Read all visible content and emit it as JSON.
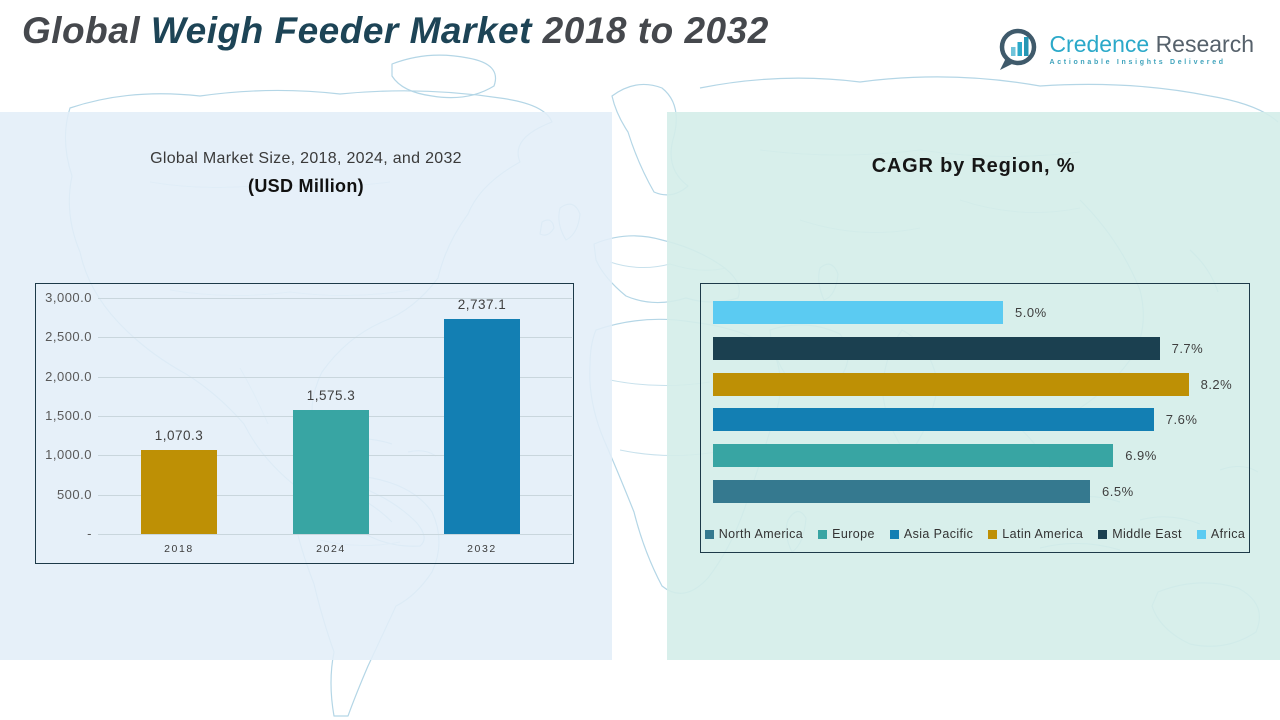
{
  "header": {
    "title_part1": "Global ",
    "title_part2": "Weigh Feeder Market",
    "title_part3": " 2018 to 2032"
  },
  "logo": {
    "icon": "bar-chart-speech-bubble-icon",
    "name_primary": "Credence ",
    "name_secondary": "Research",
    "tagline": "Actionable Insights Delivered",
    "accent_color": "#2BA9C9",
    "secondary_color": "#56616B"
  },
  "colors": {
    "title_dark": "#45484D",
    "title_teal": "#1D4456",
    "left_panel_bg": "#E4EFF8",
    "right_panel_bg": "#D6EDEA",
    "gold": "#BE9005",
    "teal": "#38A5A3",
    "blue": "#137FB3",
    "navy": "#1B4050",
    "steel_blue": "#35798F",
    "light_blue": "#5BCBF2"
  },
  "chart_data": [
    {
      "type": "bar",
      "title": "Global Market Size, 2018, 2024, and 2032",
      "subtitle": "(USD Million)",
      "categories": [
        "2018",
        "2024",
        "2032"
      ],
      "values": [
        1070.3,
        1575.3,
        2737.1
      ],
      "value_labels": [
        "1,070.3",
        "1,575.3",
        "2,737.1"
      ],
      "bar_colors": [
        "#BE9005",
        "#38A5A3",
        "#137FB3"
      ],
      "xlabel": "",
      "ylabel": "",
      "ylim": [
        0,
        3000
      ],
      "ytick_labels": [
        "3,000.0",
        "2,500.0",
        "2,000.0",
        "1,500.0",
        "1,000.0",
        "500.0",
        "-"
      ],
      "grid": "on",
      "legend_position": "none"
    },
    {
      "type": "bar-horizontal",
      "title": "CAGR by Region, %",
      "categories": [
        "Africa",
        "Middle East",
        "Latin America",
        "Asia Pacific",
        "Europe",
        "North America"
      ],
      "values": [
        5.0,
        7.7,
        8.2,
        7.6,
        6.9,
        6.5
      ],
      "value_labels": [
        "5.0%",
        "7.7%",
        "8.2%",
        "7.6%",
        "6.9%",
        "6.5%"
      ],
      "bar_colors": [
        "#5BCBF2",
        "#1B4050",
        "#BE9005",
        "#137FB3",
        "#38A5A3",
        "#35798F"
      ],
      "xlabel": "",
      "ylabel": "",
      "xlim": [
        0,
        8.6
      ],
      "grid": "off",
      "legend_position": "bottom",
      "legend": [
        {
          "label": "North America",
          "color": "#35798F"
        },
        {
          "label": "Europe",
          "color": "#38A5A3"
        },
        {
          "label": "Asia Pacific",
          "color": "#137FB3"
        },
        {
          "label": "Latin America",
          "color": "#BE9005"
        },
        {
          "label": "Middle East",
          "color": "#1B4050"
        },
        {
          "label": "Africa",
          "color": "#5BCBF2"
        }
      ]
    }
  ]
}
